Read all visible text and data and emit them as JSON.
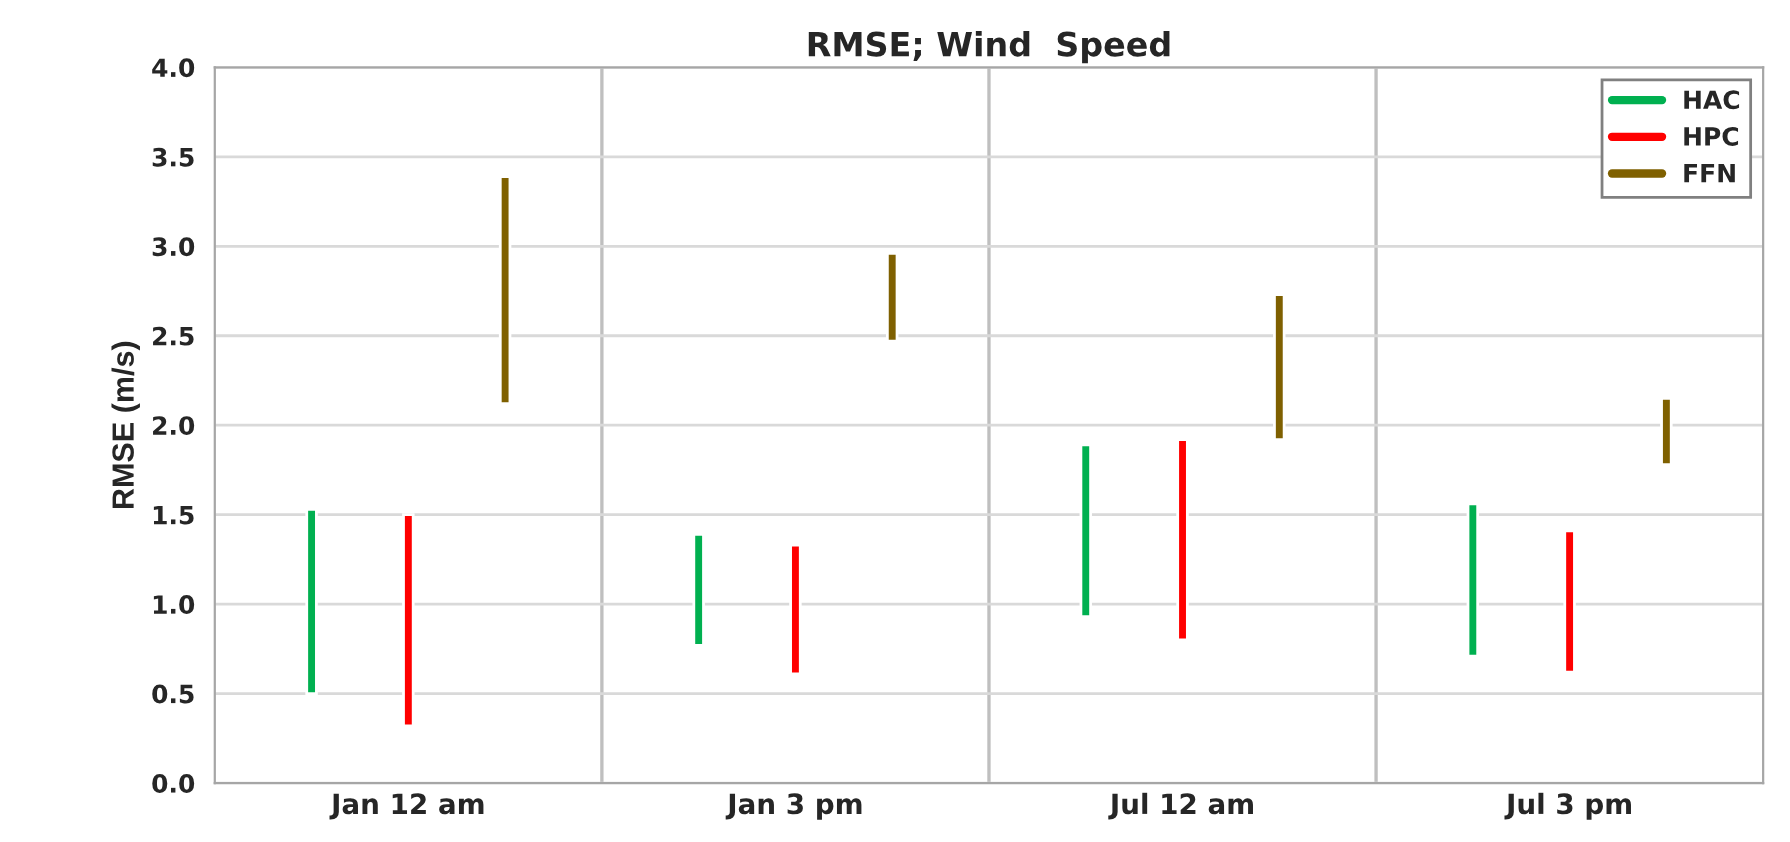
{
  "chart_data": {
    "type": "bar",
    "title": "RMSE; Wind  Speed",
    "ylabel": "RMSE (m/s)",
    "categories": [
      "Jan 12 am",
      "Jan 3 pm",
      "Jul 12 am",
      "Jul 3 pm"
    ],
    "series": [
      {
        "name": "HAC",
        "color": "#00b050",
        "values": [
          1.03,
          0.62,
          0.96,
          0.85
        ],
        "base": [
          0.5,
          0.77,
          0.93,
          0.71
        ]
      },
      {
        "name": "HPC",
        "color": "#ff0000",
        "values": [
          1.18,
          0.72,
          1.12,
          0.79
        ],
        "base": [
          0.32,
          0.61,
          0.8,
          0.62
        ]
      },
      {
        "name": "FFN",
        "color": "#7f6000",
        "values": [
          1.27,
          0.49,
          0.81,
          0.37
        ],
        "base": [
          2.12,
          2.47,
          1.92,
          1.78
        ]
      }
    ],
    "ylim": [
      0,
      4.0
    ],
    "yticks": [
      {
        "value": 0,
        "label": "0.0"
      },
      {
        "value": 0.5,
        "label": "0.5"
      },
      {
        "value": 1.0,
        "label": "1.0"
      },
      {
        "value": 1.5,
        "label": "1.5"
      },
      {
        "value": 2.0,
        "label": "2.0"
      },
      {
        "value": 2.5,
        "label": "2.5"
      },
      {
        "value": 3.0,
        "label": "3.0"
      },
      {
        "value": 3.5,
        "label": "3.5"
      },
      {
        "value": 4.0,
        "label": "4.0"
      }
    ],
    "grid": true,
    "legend": "top right"
  }
}
